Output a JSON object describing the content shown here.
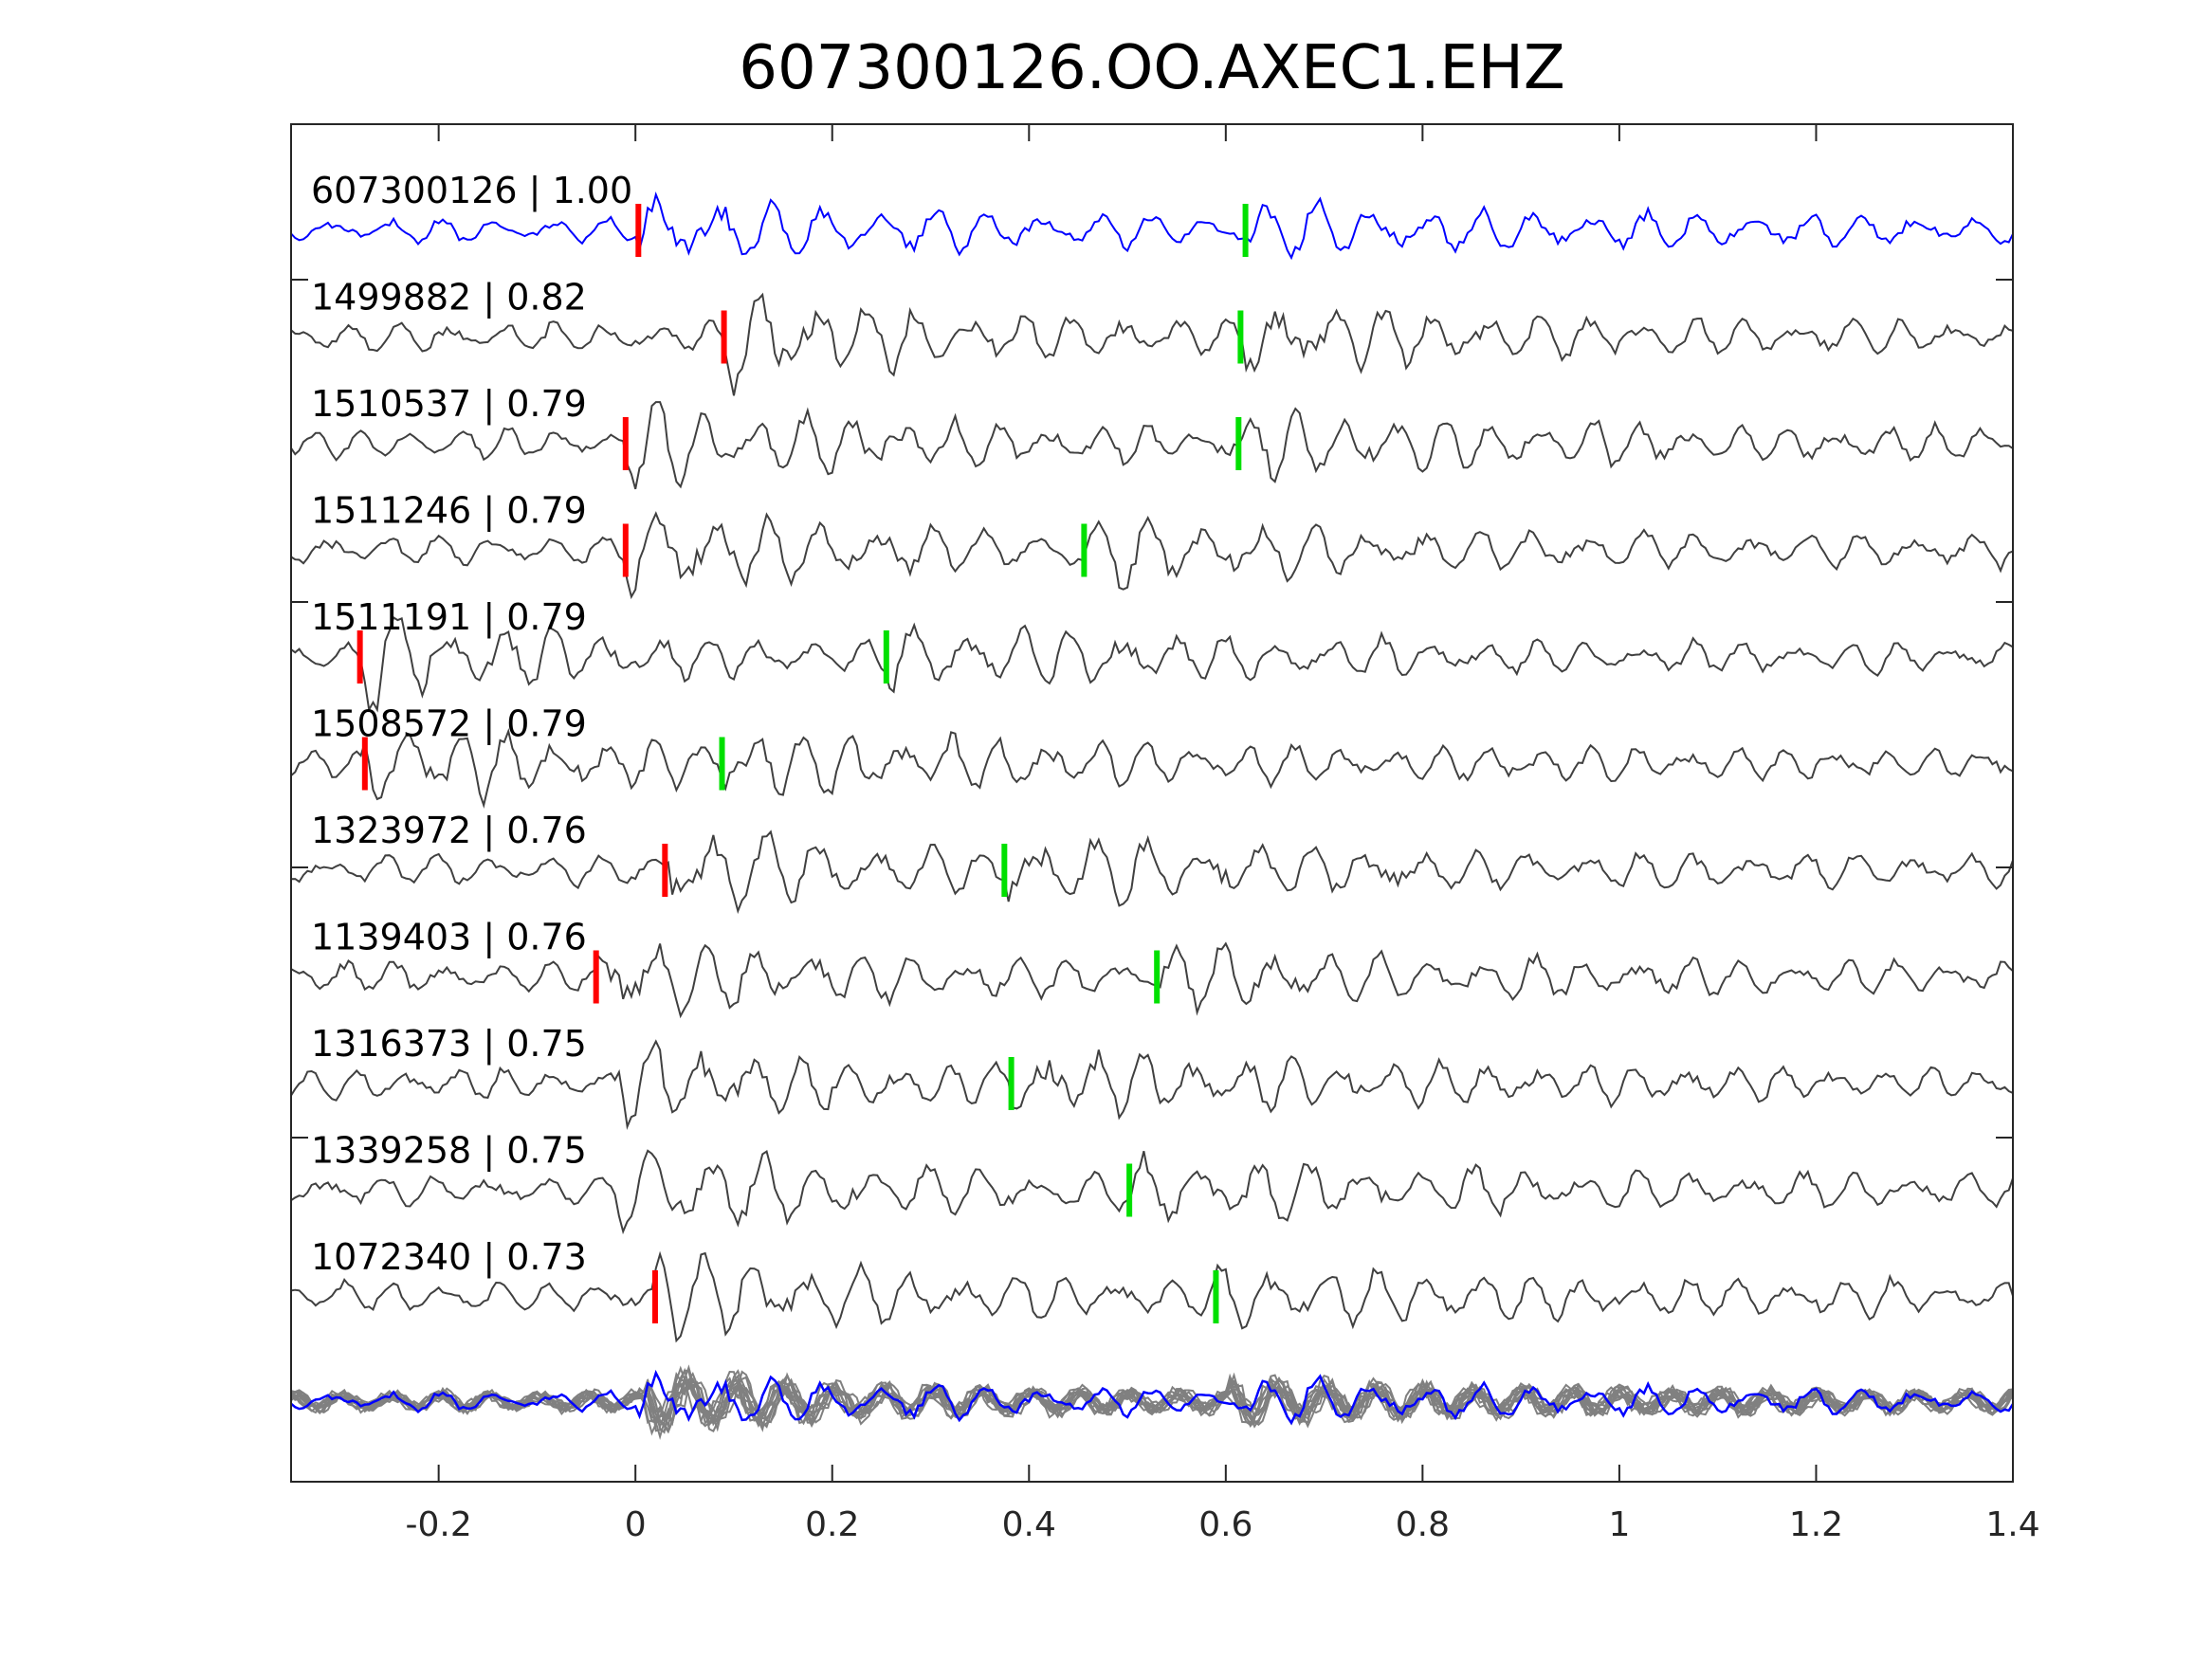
{
  "colors": {
    "template": "#0000ff",
    "match": "#404040",
    "stack": "#808080",
    "p_pick": "#ff0000",
    "s_pick": "#00e000",
    "axis": "#262626"
  },
  "chart_data": {
    "type": "line",
    "title": "607300126.OO.AXEC1.EHZ",
    "xlabel": "",
    "ylabel": "",
    "xlim": [
      -0.35,
      1.4
    ],
    "xticks": [
      {
        "value": -0.2,
        "label": "-0.2"
      },
      {
        "value": 0,
        "label": "0"
      },
      {
        "value": 0.2,
        "label": "0.2"
      },
      {
        "value": 0.4,
        "label": "0.4"
      },
      {
        "value": 0.6,
        "label": "0.6"
      },
      {
        "value": 0.8,
        "label": "0.8"
      },
      {
        "value": 1,
        "label": "1"
      },
      {
        "value": 1.2,
        "label": "1.2"
      },
      {
        "value": 1.4,
        "label": "1.4"
      }
    ],
    "grid": false,
    "series": [
      {
        "label": "607300126 | 1.00",
        "role": "template",
        "p_pick": 0.003,
        "s_pick": 0.62
      },
      {
        "label": "1499882 | 0.82",
        "role": "match",
        "p_pick": 0.09,
        "s_pick": 0.615
      },
      {
        "label": "1510537 | 0.79",
        "role": "match",
        "p_pick": -0.01,
        "s_pick": 0.613
      },
      {
        "label": "1511246 | 0.79",
        "role": "match",
        "p_pick": -0.01,
        "s_pick": 0.456
      },
      {
        "label": "1511191 | 0.79",
        "role": "match",
        "p_pick": -0.28,
        "s_pick": 0.255
      },
      {
        "label": "1508572 | 0.79",
        "role": "match",
        "p_pick": -0.275,
        "s_pick": 0.088
      },
      {
        "label": "1323972 | 0.76",
        "role": "match",
        "p_pick": 0.03,
        "s_pick": 0.375
      },
      {
        "label": "1139403 | 0.76",
        "role": "match",
        "p_pick": -0.04,
        "s_pick": 0.53
      },
      {
        "label": "1316373 | 0.75",
        "role": "match",
        "p_pick": null,
        "s_pick": 0.382
      },
      {
        "label": "1339258 | 0.75",
        "role": "match",
        "p_pick": null,
        "s_pick": 0.502
      },
      {
        "label": "1072340 | 0.73",
        "role": "match",
        "p_pick": 0.02,
        "s_pick": 0.59
      }
    ],
    "stack": {
      "role": "overlay",
      "count": 12
    }
  }
}
